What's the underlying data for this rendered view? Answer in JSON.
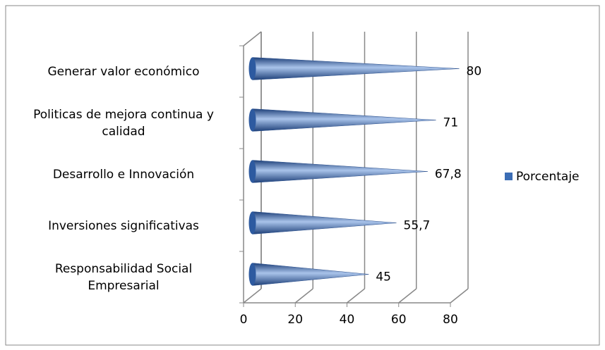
{
  "chart_data": {
    "type": "cone-bar-horizontal",
    "categories": [
      "Generar valor económico",
      "Politicas de mejora continua y calidad",
      "Desarrollo e Innovación",
      "Inversiones significativas",
      "Responsabilidad Social Empresarial"
    ],
    "series": [
      {
        "name": "Porcentaje",
        "color": "#3b6db5",
        "values": [
          80,
          71,
          67.8,
          55.7,
          45
        ],
        "value_labels": [
          "80",
          "71",
          "67,8",
          "55,7",
          "45"
        ]
      }
    ],
    "xlim": [
      0,
      80
    ],
    "xticks": [
      0,
      20,
      40,
      60,
      80
    ],
    "grid": true,
    "legend": "right"
  }
}
